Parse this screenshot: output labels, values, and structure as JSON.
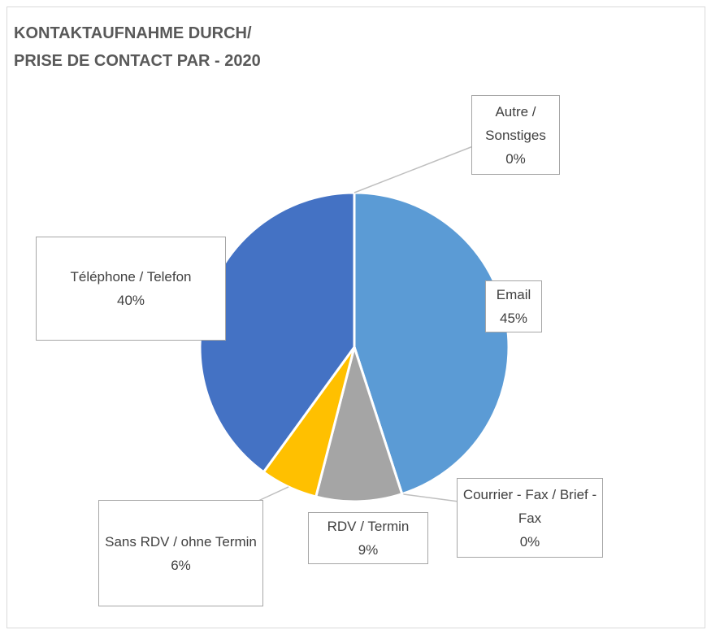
{
  "chart_data": {
    "type": "pie",
    "title": "KONTAKTAUFNAHME DURCH/\nPRISE DE CONTACT PAR - 2020",
    "categories": [
      "Email",
      "Courrier - Fax / Brief - Fax",
      "RDV / Termin",
      "Sans RDV / ohne Termin",
      "Téléphone / Telefon",
      "Autre / Sonstiges"
    ],
    "values": [
      45,
      0,
      9,
      6,
      40,
      0
    ],
    "value_labels": [
      "45%",
      "0%",
      "9%",
      "6%",
      "40%",
      "0%"
    ],
    "colors": [
      "#5b9bd5",
      "#ed7d31",
      "#a5a5a5",
      "#ffc000",
      "#4472c4",
      "#70ad47"
    ]
  }
}
